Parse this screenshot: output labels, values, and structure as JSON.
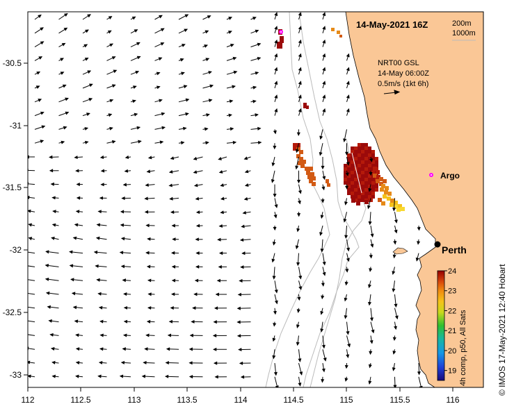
{
  "title": "14-May-2021 16Z",
  "legend": {
    "depth_1": "200m",
    "depth_2": "1000m"
  },
  "product": {
    "line1": "NRT00 GSL",
    "line2": "14-May 06:00Z",
    "line3": "0.5m/s (1kt 6h)"
  },
  "places": {
    "perth": "Perth",
    "argo": "Argo"
  },
  "colorbar": {
    "label": "4h comp, p50, All Sats",
    "ticks": [
      "19",
      "20",
      "21",
      "22",
      "23",
      "24"
    ],
    "min": 18.5,
    "max": 24
  },
  "credit": "© IMOS 17-May-2021 12:40 Hobart",
  "axes": {
    "x_ticks": [
      "112",
      "112.5",
      "113",
      "113.5",
      "114",
      "114.5",
      "115",
      "115.5",
      "116"
    ],
    "y_ticks": [
      "-30.5",
      "-31",
      "-31.5",
      "-32",
      "-32.5",
      "-33"
    ],
    "xlim": [
      112,
      116.3
    ],
    "ylim": [
      -33.1,
      -30.05
    ]
  },
  "colors": {
    "land": "#FAC796",
    "coast": "#000000",
    "isobath": "#BBBBBB",
    "argo": "#FF00FF"
  }
}
